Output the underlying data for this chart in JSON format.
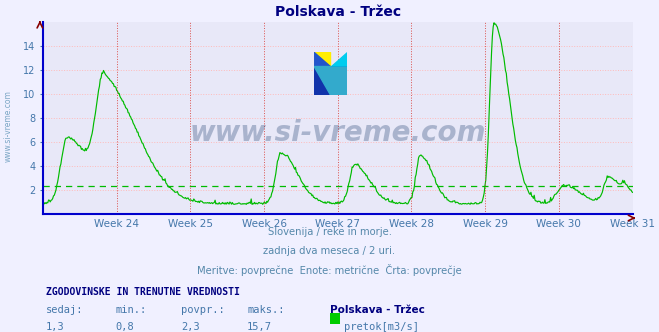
{
  "title": "Polskava - Tržec",
  "title_color": "#000080",
  "bg_color": "#f0f0ff",
  "plot_bg_color": "#e8e8f8",
  "grid_color": "#ffbbbb",
  "grid_style": ":",
  "line_color": "#00bb00",
  "dashed_avg_color": "#00bb00",
  "avg_value": 2.3,
  "y_min": 0,
  "y_max": 16.0,
  "y_ticks": [
    2,
    4,
    6,
    8,
    10,
    12,
    14
  ],
  "x_label_color": "#5588aa",
  "tick_label_color": "#4477aa",
  "weeks": [
    "Week 24",
    "Week 25",
    "Week 26",
    "Week 27",
    "Week 28",
    "Week 29",
    "Week 30",
    "Week 31"
  ],
  "subtitle_lines": [
    "Slovenija / reke in morje.",
    "zadnja dva meseca / 2 uri.",
    "Meritve: povprečne  Enote: metrične  Črta: povprečje"
  ],
  "footer_bold": "ZGODOVINSKE IN TRENUTNE VREDNOSTI",
  "footer_labels": [
    "sedaj:",
    "min.:",
    "povpr.:",
    "maks.:"
  ],
  "footer_values": [
    "1,3",
    "0,8",
    "2,3",
    "15,7"
  ],
  "footer_station": "Polskava - Tržec",
  "footer_legend_color": "#00cc00",
  "footer_legend_label": "pretok[m3/s]",
  "watermark": "www.si-vreme.com",
  "watermark_color": "#1a3a6a",
  "watermark_alpha": 0.3,
  "side_label": "www.si-vreme.com",
  "side_label_color": "#6699bb",
  "spine_color": "#0000cc",
  "arrow_color": "#880000",
  "vline_color": "#cc4444"
}
